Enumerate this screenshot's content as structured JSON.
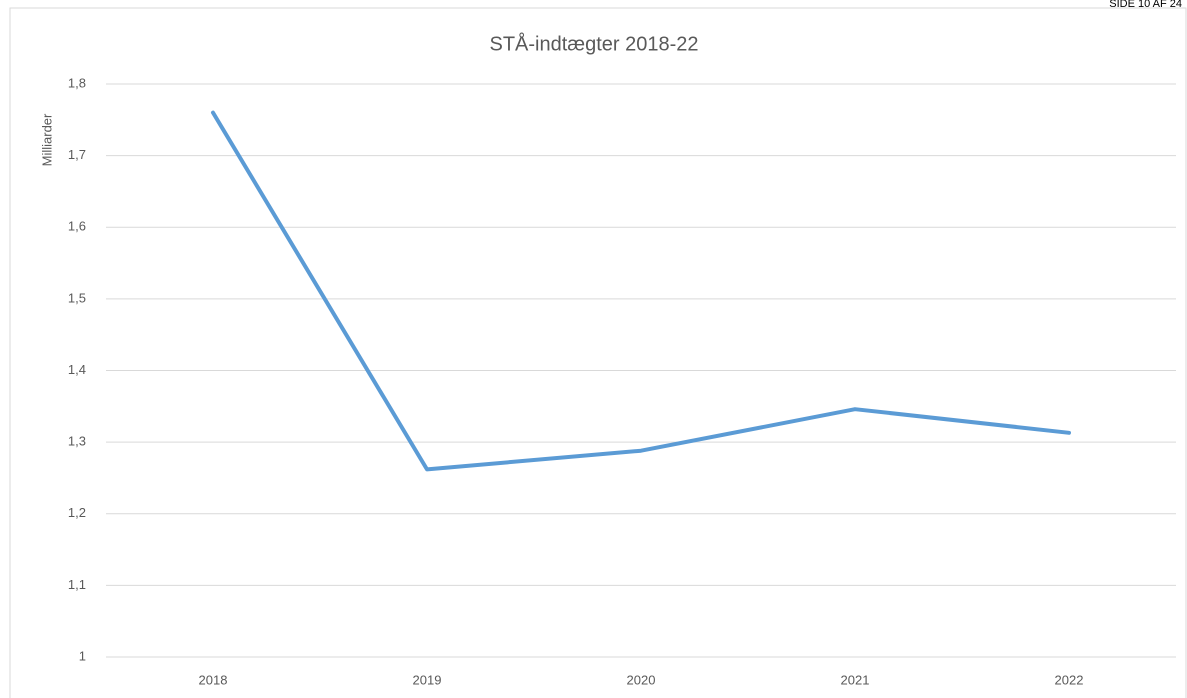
{
  "page_header": "SIDE 10 AF 24",
  "chart_data": {
    "type": "line",
    "title": "STÅ-indtægter 2018-22",
    "y_label": "Milliarder",
    "categories": [
      "2018",
      "2019",
      "2020",
      "2021",
      "2022"
    ],
    "series": [
      {
        "name": "STÅ-indtægter",
        "color": "#5b9bd5",
        "values": [
          1.76,
          1.262,
          1.288,
          1.346,
          1.313
        ]
      }
    ],
    "ylim": [
      1,
      1.8
    ],
    "yticks": [
      1,
      {
        "value": 1.1,
        "label": "1,1"
      },
      {
        "value": 1.2,
        "label": "1,2"
      },
      {
        "value": 1.3,
        "label": "1,3"
      },
      {
        "value": 1.4,
        "label": "1,4"
      },
      {
        "value": 1.5,
        "label": "1,5"
      },
      {
        "value": 1.6,
        "label": "1,6"
      },
      {
        "value": 1.7,
        "label": "1,7"
      },
      {
        "value": 1.8,
        "label": "1,8"
      }
    ],
    "grid": true
  }
}
